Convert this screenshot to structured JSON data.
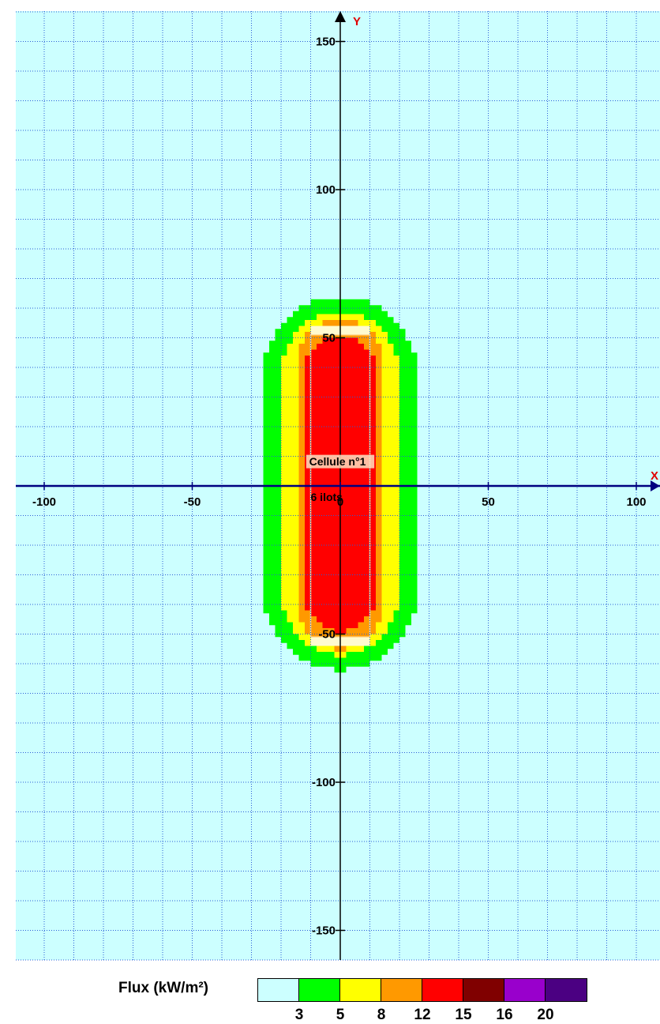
{
  "chart_data": {
    "type": "heatmap",
    "x_axis": {
      "label": "X",
      "ticks": [
        -100,
        -50,
        0,
        50,
        100
      ],
      "tick_labels": [
        "-100",
        "-50",
        "0",
        "50",
        "100"
      ],
      "range": [
        -113,
        110
      ]
    },
    "y_axis": {
      "label": "Y",
      "ticks": [
        150,
        100,
        50,
        -50,
        -100,
        -150
      ],
      "tick_labels": [
        "150",
        "100",
        "50",
        "-50",
        "-100",
        "-150"
      ],
      "range": [
        -160,
        160
      ]
    },
    "grid": true,
    "grid_step": 10,
    "background_color": "#ccffff",
    "cell": {
      "name": "Cellule n°1",
      "sub": "6 ilots",
      "x_range": [
        -10,
        10
      ],
      "y_range": [
        -53,
        53
      ]
    },
    "zones": [
      {
        "flux_min": 3,
        "color": "#00ff00",
        "x_half_width": 27,
        "y_half_height": 63
      },
      {
        "flux_min": 5,
        "color": "#ffff00",
        "x_half_width": 21,
        "y_half_height": 58
      },
      {
        "flux_min": 8,
        "color": "#ff9900",
        "x_half_width": 15,
        "y_half_height": 56
      },
      {
        "flux_min": 12,
        "color": "#ff0000",
        "x_half_width": 13,
        "y_half_height": 50
      }
    ],
    "legend": {
      "title": "Flux (kW/m²)",
      "colors": [
        "#ccffff",
        "#00ff00",
        "#ffff00",
        "#ff9900",
        "#ff0000",
        "#800000",
        "#9900cc",
        "#4b0082"
      ],
      "thresholds": [
        "3",
        "5",
        "8",
        "12",
        "15",
        "16",
        "20"
      ]
    }
  }
}
